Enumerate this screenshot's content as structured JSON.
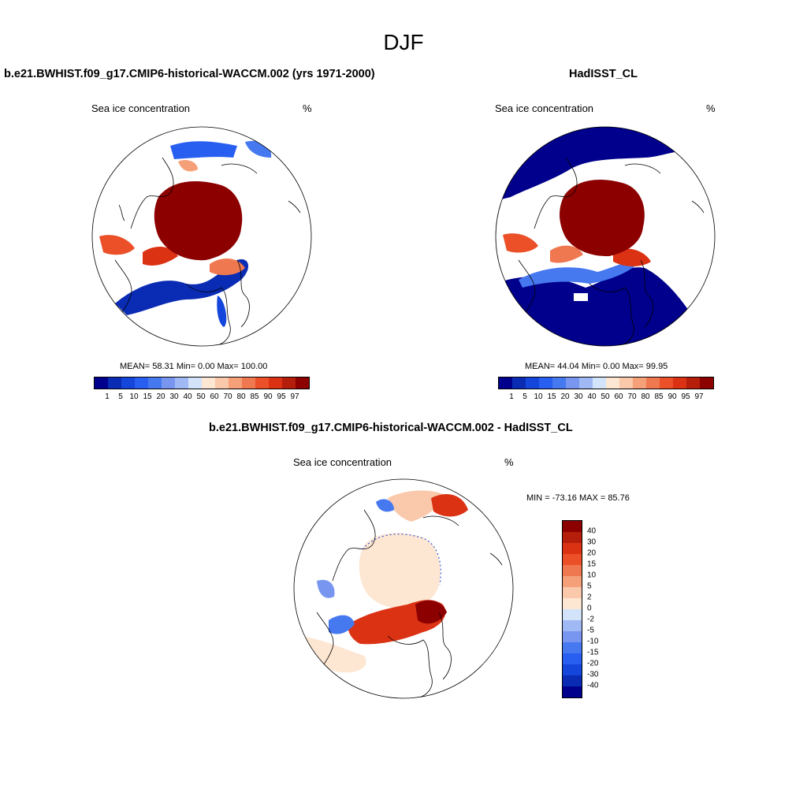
{
  "figure": {
    "title": "DJF"
  },
  "panels": {
    "model": {
      "header": "b.e21.BWHIST.f09_g17.CMIP6-historical-WACCM.002 (yrs 1971-2000)",
      "variable": "Sea ice concentration",
      "units": "%",
      "stats": "MEAN=  58.31  Min=   0.00  Max= 100.00"
    },
    "obs": {
      "header": "HadISST_CL",
      "variable": "Sea ice concentration",
      "units": "%",
      "stats": "MEAN=  44.04  Min=   0.00  Max=  99.95"
    },
    "diff": {
      "header": "b.e21.BWHIST.f09_g17.CMIP6-historical-WACCM.002 - HadISST_CL",
      "variable": "Sea ice concentration",
      "units": "%",
      "stats": "MIN = -73.16 MAX =  85.76"
    }
  },
  "colorbars": {
    "abs": {
      "labels": [
        "1",
        "5",
        "10",
        "15",
        "20",
        "30",
        "40",
        "50",
        "60",
        "70",
        "80",
        "85",
        "90",
        "95",
        "97"
      ],
      "colors": [
        "#00008c",
        "#0a2cb4",
        "#1446dc",
        "#285ff0",
        "#4678f0",
        "#7896f0",
        "#a0b9f5",
        "#d2e3fa",
        "#fde6d2",
        "#fac8aa",
        "#f5a078",
        "#f07850",
        "#eb5028",
        "#dc3214",
        "#b41e0a",
        "#8c0000"
      ]
    },
    "diff": {
      "labels": [
        "40",
        "30",
        "20",
        "15",
        "10",
        "5",
        "2",
        "0",
        "-2",
        "-5",
        "-10",
        "-15",
        "-20",
        "-30",
        "-40"
      ],
      "colors": [
        "#8c0000",
        "#b41e0a",
        "#dc3214",
        "#eb5028",
        "#f07850",
        "#f5a078",
        "#fac8aa",
        "#fde6d2",
        "#d2e3fa",
        "#a0b9f5",
        "#7896f0",
        "#4678f0",
        "#285ff0",
        "#1446dc",
        "#0a2cb4",
        "#00008c"
      ]
    }
  }
}
